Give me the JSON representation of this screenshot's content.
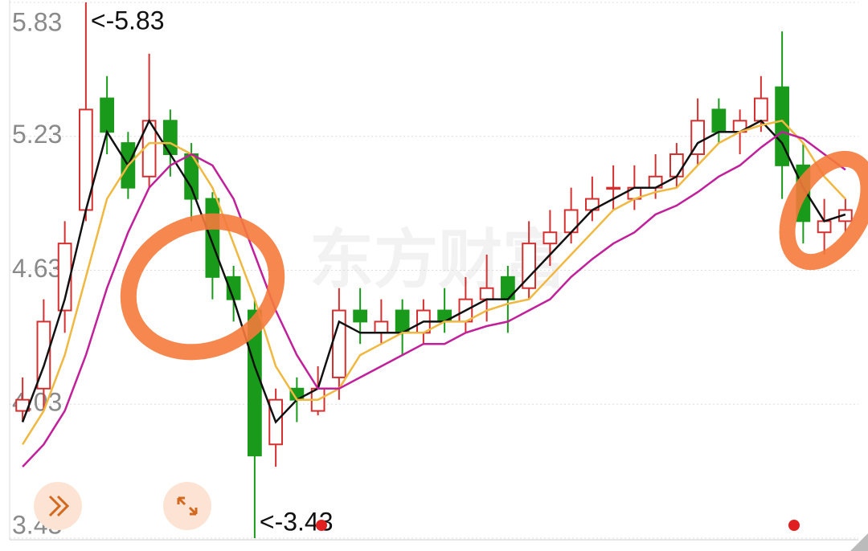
{
  "chart_data": {
    "type": "candlestick",
    "watermark": "东方财富",
    "max_label": "<-5.83",
    "min_label": "<-3.43",
    "ylim": [
      3.43,
      5.83
    ],
    "yticks": [
      3.43,
      4.03,
      4.63,
      5.23,
      5.83
    ],
    "grid": true,
    "up_color": "#d43030",
    "down_color": "#1a9a1a",
    "open": [
      4.0,
      4.1,
      4.45,
      4.9,
      5.4,
      5.2,
      5.05,
      5.3,
      5.15,
      4.95,
      4.6,
      4.45,
      3.85,
      4.1,
      4.0,
      4.15,
      4.45,
      4.35,
      4.45,
      4.35,
      4.45,
      4.4,
      4.5,
      4.6,
      4.55,
      4.75,
      4.8,
      4.9,
      5.0,
      4.95,
      5.0,
      5.05,
      5.15,
      5.35,
      5.25,
      5.3,
      5.45,
      5.1,
      4.8,
      4.85
    ],
    "high": [
      4.15,
      4.5,
      4.85,
      5.83,
      5.5,
      5.25,
      5.6,
      5.35,
      5.2,
      4.98,
      4.65,
      4.5,
      4.1,
      4.15,
      4.2,
      4.55,
      4.55,
      4.5,
      4.5,
      4.5,
      4.55,
      4.6,
      4.7,
      4.65,
      4.85,
      4.9,
      5.0,
      5.05,
      5.1,
      5.1,
      5.15,
      5.2,
      5.4,
      5.4,
      5.35,
      5.5,
      5.7,
      5.2,
      4.95,
      4.95
    ],
    "low": [
      3.95,
      4.0,
      4.35,
      4.85,
      5.15,
      4.95,
      5.0,
      5.05,
      4.85,
      4.5,
      4.4,
      3.43,
      3.75,
      3.95,
      3.98,
      4.05,
      4.3,
      4.3,
      4.25,
      4.3,
      4.35,
      4.35,
      4.4,
      4.35,
      4.5,
      4.65,
      4.75,
      4.85,
      4.9,
      4.9,
      4.95,
      5.0,
      5.1,
      5.2,
      5.15,
      5.25,
      4.95,
      4.75,
      4.7,
      4.8
    ],
    "close": [
      4.05,
      4.4,
      4.75,
      5.35,
      5.25,
      5.0,
      5.3,
      5.15,
      4.95,
      4.6,
      4.5,
      3.8,
      4.05,
      4.05,
      4.1,
      4.45,
      4.4,
      4.4,
      4.35,
      4.45,
      4.4,
      4.5,
      4.55,
      4.5,
      4.75,
      4.8,
      4.9,
      4.95,
      5.0,
      5.0,
      5.05,
      5.15,
      5.3,
      5.25,
      5.3,
      5.4,
      5.1,
      4.85,
      4.85,
      4.9
    ],
    "lines": [
      {
        "color": "#111111",
        "values": [
          3.95,
          4.2,
          4.5,
          4.9,
          5.25,
          5.1,
          5.3,
          5.15,
          5.0,
          4.75,
          4.5,
          4.2,
          3.95,
          4.05,
          4.1,
          4.4,
          4.35,
          4.35,
          4.35,
          4.4,
          4.4,
          4.45,
          4.5,
          4.5,
          4.6,
          4.7,
          4.8,
          4.9,
          4.95,
          5.0,
          5.0,
          5.05,
          5.2,
          5.25,
          5.25,
          5.3,
          5.2,
          5.0,
          4.85,
          4.88
        ]
      },
      {
        "color": "#f0b840",
        "values": [
          3.85,
          4.0,
          4.25,
          4.6,
          4.95,
          5.1,
          5.2,
          5.2,
          5.15,
          5.0,
          4.75,
          4.5,
          4.2,
          4.05,
          4.05,
          4.1,
          4.25,
          4.3,
          4.35,
          4.35,
          4.4,
          4.4,
          4.45,
          4.48,
          4.5,
          4.6,
          4.7,
          4.8,
          4.9,
          4.95,
          4.98,
          5.0,
          5.1,
          5.2,
          5.25,
          5.28,
          5.3,
          5.2,
          5.05,
          4.95
        ]
      },
      {
        "color": "#c0209a",
        "values": [
          3.75,
          3.85,
          4.0,
          4.25,
          4.55,
          4.8,
          5.0,
          5.1,
          5.15,
          5.1,
          4.95,
          4.7,
          4.45,
          4.25,
          4.1,
          4.1,
          4.15,
          4.2,
          4.25,
          4.3,
          4.3,
          4.35,
          4.38,
          4.4,
          4.45,
          4.5,
          4.6,
          4.68,
          4.75,
          4.8,
          4.88,
          4.92,
          4.98,
          5.05,
          5.1,
          5.18,
          5.25,
          5.22,
          5.15,
          5.08
        ]
      }
    ]
  }
}
